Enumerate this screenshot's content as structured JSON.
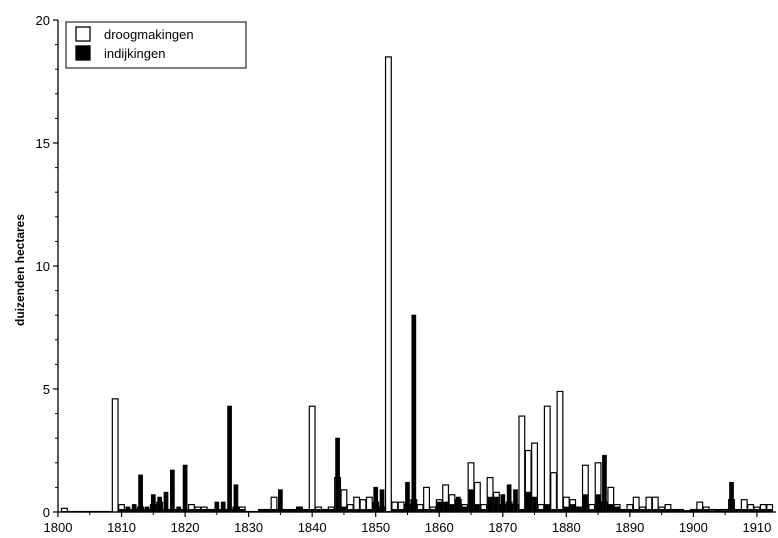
{
  "chart_data": {
    "type": "bar",
    "ylabel": "duizenden hectares",
    "xlabel": "",
    "title": "",
    "xlim": [
      1800,
      1913
    ],
    "ylim": [
      0,
      20
    ],
    "x_ticks": [
      1800,
      1810,
      1820,
      1830,
      1840,
      1850,
      1860,
      1870,
      1880,
      1890,
      1900,
      1910
    ],
    "y_ticks": [
      0,
      5,
      10,
      15,
      20
    ],
    "legend_position": "top-left",
    "series": [
      {
        "name": "droogmakingen",
        "style": "open",
        "color": "#ffffff",
        "edge": "#000000"
      },
      {
        "name": "indijkingen",
        "style": "filled",
        "color": "#000000",
        "edge": "#000000"
      }
    ],
    "years": [
      1801,
      1802,
      1803,
      1804,
      1805,
      1806,
      1807,
      1808,
      1809,
      1810,
      1811,
      1812,
      1813,
      1814,
      1815,
      1816,
      1817,
      1818,
      1819,
      1820,
      1821,
      1822,
      1823,
      1824,
      1825,
      1826,
      1827,
      1828,
      1829,
      1830,
      1831,
      1832,
      1833,
      1834,
      1835,
      1836,
      1837,
      1838,
      1839,
      1840,
      1841,
      1842,
      1843,
      1844,
      1845,
      1846,
      1847,
      1848,
      1849,
      1850,
      1851,
      1852,
      1853,
      1854,
      1855,
      1856,
      1857,
      1858,
      1859,
      1860,
      1861,
      1862,
      1863,
      1864,
      1865,
      1866,
      1867,
      1868,
      1869,
      1870,
      1871,
      1872,
      1873,
      1874,
      1875,
      1876,
      1877,
      1878,
      1879,
      1880,
      1881,
      1882,
      1883,
      1884,
      1885,
      1886,
      1887,
      1888,
      1889,
      1890,
      1891,
      1892,
      1893,
      1894,
      1895,
      1896,
      1897,
      1898,
      1899,
      1900,
      1901,
      1902,
      1903,
      1904,
      1905,
      1906,
      1907,
      1908,
      1909,
      1910,
      1911,
      1912
    ],
    "droogmakingen": [
      0.15,
      0.02,
      0.02,
      0.02,
      0.02,
      0.02,
      0.02,
      0.02,
      4.6,
      0.3,
      0.1,
      0.1,
      0.2,
      0.1,
      0.3,
      0.4,
      0.1,
      0.1,
      0.1,
      0.1,
      0.3,
      0.2,
      0.2,
      0.1,
      0.1,
      0.1,
      0.1,
      0.2,
      0.2,
      0.02,
      0.02,
      0.1,
      0.1,
      0.6,
      0.1,
      0.1,
      0.1,
      0.2,
      0.1,
      4.3,
      0.2,
      0.1,
      0.2,
      1.4,
      0.9,
      0.3,
      0.6,
      0.5,
      0.6,
      0.4,
      0.2,
      18.5,
      0.4,
      0.4,
      0.3,
      0.5,
      0.3,
      1.0,
      0.2,
      0.5,
      1.1,
      0.7,
      0.5,
      0.3,
      2.0,
      1.2,
      0.3,
      1.4,
      0.8,
      0.3,
      0.4,
      0.3,
      3.9,
      2.5,
      2.8,
      0.3,
      4.3,
      1.6,
      4.9,
      0.6,
      0.5,
      0.2,
      1.9,
      0.3,
      2.0,
      0.4,
      1.0,
      0.3,
      0.1,
      0.3,
      0.6,
      0.2,
      0.6,
      0.6,
      0.2,
      0.3,
      0.1,
      0.1,
      0.05,
      0.1,
      0.4,
      0.2,
      0.1,
      0.1,
      0.1,
      0.5,
      0.1,
      0.5,
      0.3,
      0.2,
      0.3,
      0.3
    ],
    "indijkingen": [
      0.02,
      0.02,
      0.02,
      0.02,
      0.02,
      0.02,
      0.02,
      0.02,
      0.0,
      0.1,
      0.2,
      0.3,
      1.5,
      0.2,
      0.7,
      0.6,
      0.8,
      1.7,
      0.2,
      1.9,
      0.1,
      0.1,
      0.1,
      0.1,
      0.4,
      0.4,
      4.3,
      1.1,
      0.1,
      0.02,
      0.02,
      0.1,
      0.1,
      0.1,
      0.9,
      0.1,
      0.1,
      0.2,
      0.1,
      0.1,
      0.1,
      0.1,
      0.1,
      3.0,
      0.2,
      0.1,
      0.1,
      0.1,
      0.1,
      1.0,
      0.9,
      0.02,
      0.1,
      0.1,
      1.2,
      8.0,
      0.1,
      0.1,
      0.1,
      0.4,
      0.4,
      0.3,
      0.6,
      0.2,
      0.9,
      0.3,
      0.1,
      0.6,
      0.6,
      0.7,
      1.1,
      0.9,
      0.1,
      0.8,
      0.6,
      0.1,
      0.3,
      0.1,
      0.1,
      0.2,
      0.3,
      0.2,
      0.7,
      0.1,
      0.7,
      2.3,
      0.3,
      0.2,
      0.1,
      0.1,
      0.1,
      0.1,
      0.1,
      0.1,
      0.1,
      0.1,
      0.1,
      0.1,
      0.05,
      0.1,
      0.1,
      0.1,
      0.05,
      0.1,
      0.05,
      1.2,
      0.1,
      0.1,
      0.1,
      0.1,
      0.1,
      0.1
    ]
  }
}
